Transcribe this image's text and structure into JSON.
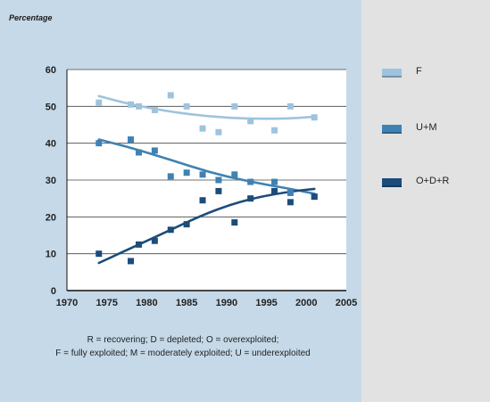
{
  "y_axis_caption": "Percentage",
  "note_lines": [
    "R = recovering; D = depleted; O = overexploited;",
    "F = fully exploited; M = moderately exploited; U = underexploited"
  ],
  "chart_data": {
    "type": "scatter",
    "title": "",
    "xlabel": "",
    "ylabel": "Percentage",
    "xlim": [
      1970,
      2005
    ],
    "ylim": [
      0,
      60
    ],
    "xticks": [
      1970,
      1975,
      1980,
      1985,
      1990,
      1995,
      2000,
      2005
    ],
    "yticks": [
      0,
      10,
      20,
      30,
      40,
      50,
      60
    ],
    "grid": "horizontal",
    "legend_position": "right",
    "series": [
      {
        "name": "F",
        "color": "#9ec3dd",
        "points": [
          [
            1974,
            51
          ],
          [
            1978,
            50.5
          ],
          [
            1979,
            50
          ],
          [
            1981,
            49
          ],
          [
            1983,
            53
          ],
          [
            1985,
            50
          ],
          [
            1987,
            44
          ],
          [
            1989,
            43
          ],
          [
            1991,
            50
          ],
          [
            1993,
            46
          ],
          [
            1996,
            43.5
          ],
          [
            1998,
            50
          ],
          [
            2001,
            47
          ]
        ],
        "trend": [
          [
            1974,
            52.8
          ],
          [
            1978,
            50.5
          ],
          [
            1983,
            48.5
          ],
          [
            1988,
            47.2
          ],
          [
            1993,
            46.6
          ],
          [
            1998,
            46.7
          ],
          [
            2001,
            47.2
          ]
        ]
      },
      {
        "name": "U+M",
        "color": "#3e82b4",
        "points": [
          [
            1974,
            40
          ],
          [
            1978,
            41
          ],
          [
            1979,
            37.5
          ],
          [
            1981,
            38
          ],
          [
            1983,
            31
          ],
          [
            1985,
            32
          ],
          [
            1987,
            31.5
          ],
          [
            1989,
            30
          ],
          [
            1991,
            31.5
          ],
          [
            1993,
            29.5
          ],
          [
            1996,
            29.5
          ],
          [
            1998,
            26.5
          ],
          [
            2001,
            25.5
          ]
        ],
        "trend": [
          [
            1974,
            41
          ],
          [
            1978,
            38.8
          ],
          [
            1983,
            35.5
          ],
          [
            1988,
            32
          ],
          [
            1993,
            29.5
          ],
          [
            1998,
            27.6
          ],
          [
            2001,
            26.3
          ]
        ]
      },
      {
        "name": "O+D+R",
        "color": "#1c4c7a",
        "points": [
          [
            1974,
            10
          ],
          [
            1978,
            8
          ],
          [
            1979,
            12.5
          ],
          [
            1981,
            13.5
          ],
          [
            1983,
            16.5
          ],
          [
            1985,
            18
          ],
          [
            1987,
            24.5
          ],
          [
            1989,
            27
          ],
          [
            1991,
            18.5
          ],
          [
            1993,
            25
          ],
          [
            1996,
            27
          ],
          [
            1998,
            24
          ],
          [
            2001,
            25.5
          ]
        ],
        "trend": [
          [
            1974,
            7.5
          ],
          [
            1978,
            11.5
          ],
          [
            1983,
            16.5
          ],
          [
            1988,
            21.5
          ],
          [
            1993,
            25
          ],
          [
            1998,
            26.9
          ],
          [
            2001,
            27.6
          ]
        ]
      }
    ]
  }
}
